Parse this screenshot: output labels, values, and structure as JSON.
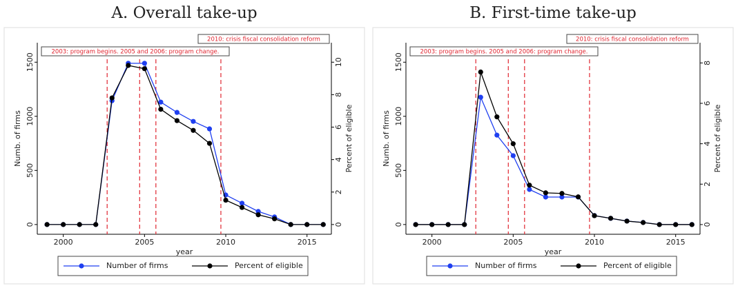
{
  "chart_data": [
    {
      "type": "line",
      "title": "A. Overall take-up",
      "xlabel": "year",
      "ylabel": "Numb. of firms",
      "y2label": "Percent of eligible",
      "x": [
        1999,
        2000,
        2001,
        2002,
        2003,
        2004,
        2005,
        2006,
        2007,
        2008,
        2009,
        2010,
        2011,
        2012,
        2013,
        2014,
        2015,
        2016
      ],
      "xlim": [
        1998.4,
        2016.5
      ],
      "xticks": [
        2000,
        2005,
        2010,
        2015
      ],
      "ylim": [
        -90,
        1680
      ],
      "yticks": [
        0,
        500,
        1000,
        1500
      ],
      "y2lim": [
        -0.6,
        11.2
      ],
      "y2ticks": [
        0,
        2,
        4,
        6,
        8,
        10
      ],
      "vlines": [
        2002.7,
        2004.7,
        2005.7,
        2009.7
      ],
      "annotations": [
        "2010: crisis fiscal consolidation reform",
        "2003: program begins. 2005 and 2006: program change."
      ],
      "series": [
        {
          "name": "Number of firms",
          "color": "#1f3ff0",
          "values": [
            0,
            0,
            0,
            0,
            1144,
            1490,
            1490,
            1131,
            1036,
            953,
            884,
            273,
            197,
            121,
            70,
            0,
            0,
            0
          ]
        },
        {
          "name": "Percent of eligible",
          "color": "#000000",
          "axis": "y2",
          "values": [
            0,
            0,
            0,
            0,
            7.8,
            9.8,
            9.6,
            7.1,
            6.4,
            5.8,
            5.0,
            1.5,
            1.05,
            0.6,
            0.35,
            0,
            0,
            0
          ]
        }
      ]
    },
    {
      "type": "line",
      "title": "B. First-time take-up",
      "xlabel": "year",
      "ylabel": "Numb. of firms",
      "y2label": "Percent of eligible",
      "x": [
        1999,
        2000,
        2001,
        2002,
        2003,
        2004,
        2005,
        2006,
        2007,
        2008,
        2009,
        2010,
        2011,
        2012,
        2013,
        2014,
        2015,
        2016
      ],
      "xlim": [
        1998.4,
        2016.5
      ],
      "xticks": [
        2000,
        2005,
        2010,
        2015
      ],
      "ylim": [
        -90,
        1680
      ],
      "yticks": [
        0,
        500,
        1000,
        1500
      ],
      "y2lim": [
        -0.48,
        9.0
      ],
      "y2ticks": [
        0,
        2,
        4,
        6,
        8
      ],
      "vlines": [
        2002.7,
        2004.7,
        2005.7,
        2009.7
      ],
      "annotations": [
        "2010: crisis fiscal consolidation reform",
        "2003: program begins. 2005 and 2006: program change."
      ],
      "series": [
        {
          "name": "Number of firms",
          "color": "#1f3ff0",
          "values": [
            0,
            0,
            0,
            0,
            1176,
            826,
            636,
            324,
            254,
            254,
            254,
            83,
            57,
            32,
            19,
            0,
            0,
            0
          ]
        },
        {
          "name": "Percent of eligible",
          "color": "#000000",
          "axis": "y2",
          "values": [
            0,
            0,
            0,
            0,
            7.55,
            5.33,
            4.0,
            1.95,
            1.57,
            1.54,
            1.37,
            0.44,
            0.31,
            0.17,
            0.1,
            0,
            0,
            0
          ]
        }
      ]
    }
  ]
}
